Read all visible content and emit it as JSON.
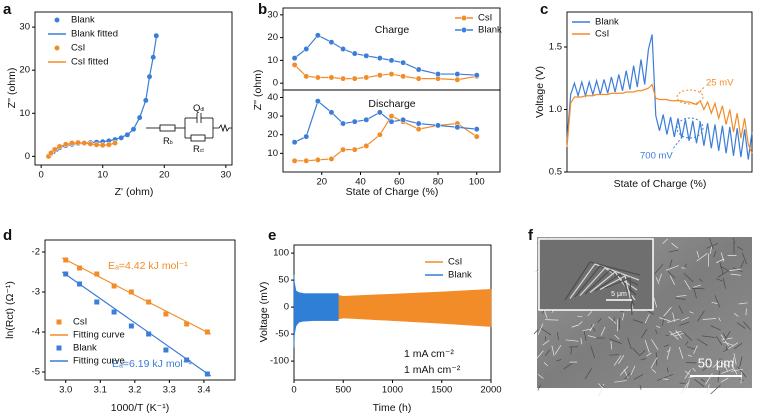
{
  "chart_data": [
    {
      "panel": "a",
      "type": "scatter",
      "xlabel": "Z' (ohm)",
      "ylabel": "Z'' (ohm)",
      "xlim": [
        -1,
        31
      ],
      "ylim": [
        -2,
        33.5
      ],
      "xticks": [
        0,
        10,
        20,
        30
      ],
      "yticks": [
        0,
        10,
        20,
        30
      ],
      "series": [
        {
          "name": "Blank",
          "color": "#3b7dd8",
          "mode": "markers",
          "marker": "circle",
          "x": [
            1.2,
            1.5,
            2,
            2.5,
            3,
            4,
            5,
            6,
            7,
            8,
            9,
            10,
            11,
            12,
            13,
            14,
            15,
            16,
            17,
            17.6,
            18.2,
            18.7
          ],
          "values": [
            0,
            0.5,
            1.1,
            1.6,
            2,
            2.5,
            2.8,
            3,
            3.1,
            3.2,
            3.3,
            3.4,
            3.6,
            3.9,
            4.3,
            5,
            6.3,
            9,
            13,
            18.5,
            23,
            28
          ]
        },
        {
          "name": "Blank fitted",
          "color": "#3b7dd8",
          "mode": "lines",
          "x": [
            1.1,
            2,
            3,
            4,
            6,
            8,
            10,
            12,
            14,
            15,
            16,
            17,
            17.6,
            18.2,
            18.8
          ],
          "values": [
            0,
            1.1,
            2,
            2.5,
            3,
            3.2,
            3.4,
            3.9,
            5,
            6.3,
            9,
            13,
            18.5,
            23,
            28.5
          ]
        },
        {
          "name": "CsI",
          "color": "#f28c28",
          "mode": "markers",
          "marker": "circle",
          "x": [
            1.2,
            1.6,
            2.2,
            3,
            4,
            5,
            6,
            7,
            8,
            9,
            10,
            11,
            12
          ],
          "values": [
            0,
            0.8,
            1.6,
            2.3,
            2.8,
            3.1,
            3.2,
            3.1,
            2.9,
            2.7,
            2.6,
            2.7,
            3.1
          ]
        },
        {
          "name": "CsI fitted",
          "color": "#f28c28",
          "mode": "lines",
          "x": [
            1.1,
            2,
            3,
            5,
            7,
            9,
            10,
            11,
            12
          ],
          "values": [
            0,
            1.4,
            2.3,
            3.1,
            3.1,
            2.7,
            2.6,
            2.7,
            3.1
          ]
        }
      ],
      "inset_labels": [
        {
          "main": "R",
          "sub": "b"
        },
        {
          "main": "Q",
          "sub": "dl"
        },
        {
          "main": "R",
          "sub": "ct"
        }
      ]
    },
    {
      "panel": "b",
      "type": "line",
      "xlabel": "State of Charge (%)",
      "ylabel": "Z'' (ohm)",
      "xlim": [
        0,
        112
      ],
      "xticks": [
        20,
        40,
        60,
        80,
        100
      ],
      "x": [
        6,
        12,
        18,
        25,
        31,
        37,
        43,
        50,
        56,
        62,
        70,
        80,
        90,
        100
      ],
      "series": [
        {
          "name": "CsI",
          "color": "#f28c28",
          "mode": "lines+markers",
          "marker": "circle"
        },
        {
          "name": "Blank",
          "color": "#3b7dd8",
          "mode": "lines+markers",
          "marker": "circle"
        }
      ],
      "subplots": [
        {
          "title": "Charge",
          "ylim": [
            -3,
            33
          ],
          "yticks": [
            0,
            10,
            20,
            30
          ],
          "values": [
            [
              8,
              3,
              2.5,
              2.5,
              2,
              2,
              2.5,
              3.5,
              4,
              3,
              2,
              2,
              1.5,
              3
            ],
            [
              11,
              15,
              21,
              18,
              15,
              13,
              12,
              11,
              10,
              9,
              6,
              4,
              4,
              3.5
            ]
          ]
        },
        {
          "title": "Discharge",
          "ylim": [
            0,
            44
          ],
          "yticks": [
            10,
            20,
            30,
            40
          ],
          "values": [
            [
              6,
              6,
              6.5,
              7,
              12,
              12,
              14,
              20,
              30,
              27,
              23,
              25,
              26,
              19
            ],
            [
              16,
              19,
              38,
              32,
              26,
              27,
              28,
              32,
              27,
              28,
              26,
              25,
              24,
              23
            ]
          ]
        }
      ]
    },
    {
      "panel": "c",
      "type": "line",
      "xlabel": "State of Charge (%)",
      "ylabel": "Voltage (V)",
      "xlim": [
        0,
        100
      ],
      "ylim": [
        0.5,
        1.78
      ],
      "yticks": [
        0.5,
        {
          "value": 1,
          "label": "1.0"
        },
        1.5
      ],
      "x": [
        0,
        2,
        4,
        6,
        8,
        10,
        12,
        14,
        16,
        18,
        20,
        22,
        24,
        26,
        28,
        30,
        32,
        34,
        36,
        38,
        40,
        42,
        44,
        46,
        48,
        50,
        52,
        54,
        56,
        58,
        60,
        62,
        64,
        66,
        68,
        70,
        72,
        74,
        76,
        78,
        80,
        82,
        84,
        86,
        88,
        90,
        92,
        94,
        96,
        98,
        100
      ],
      "series": [
        {
          "name": "Blank",
          "color": "#3b7dd8",
          "mode": "lines",
          "values": [
            0.75,
            1.12,
            1.21,
            1.11,
            1.22,
            1.11,
            1.22,
            1.12,
            1.23,
            1.12,
            1.24,
            1.13,
            1.26,
            1.14,
            1.28,
            1.15,
            1.31,
            1.16,
            1.35,
            1.18,
            1.4,
            1.2,
            1.48,
            1.6,
            0.95,
            0.83,
            0.96,
            0.8,
            0.94,
            0.78,
            0.93,
            0.77,
            0.92,
            0.75,
            0.91,
            0.73,
            0.9,
            0.71,
            0.89,
            0.69,
            0.88,
            0.67,
            0.87,
            0.65,
            0.86,
            0.63,
            0.85,
            0.62,
            0.84,
            0.6,
            0.82
          ]
        },
        {
          "name": "CsI",
          "color": "#f28c28",
          "mode": "lines",
          "values": [
            0.7,
            1.05,
            1.1,
            1.1,
            1.1,
            1.11,
            1.11,
            1.11,
            1.12,
            1.12,
            1.12,
            1.12,
            1.13,
            1.13,
            1.13,
            1.13,
            1.14,
            1.14,
            1.14,
            1.15,
            1.15,
            1.16,
            1.17,
            1.2,
            1.09,
            1.08,
            1.08,
            1.08,
            1.07,
            1.07,
            1.07,
            1.07,
            1.06,
            1.06,
            1.05,
            1.04,
            1.07,
            1.0,
            1.06,
            0.97,
            1.05,
            0.93,
            1.03,
            0.88,
            1.0,
            0.82,
            0.97,
            0.77,
            0.93,
            0.72,
            0.65
          ]
        }
      ],
      "annotations": [
        "25 mV",
        "700 mV"
      ]
    },
    {
      "panel": "d",
      "type": "scatter",
      "xlabel": "1000/T (K⁻¹)",
      "ylabel": "ln(Rct) (Ω⁻¹)",
      "xlim": [
        2.94,
        3.49
      ],
      "ylim": [
        -5.2,
        -1.7
      ],
      "xticks": [
        {
          "value": 3,
          "label": "3.0"
        },
        3.1,
        3.2,
        3.3,
        3.4
      ],
      "yticks": [
        -5,
        -4,
        -3,
        -2
      ],
      "series": [
        {
          "name": "CsI",
          "color": "#f28c28",
          "mode": "markers",
          "marker": "square",
          "x": [
            3.0,
            3.04,
            3.09,
            3.14,
            3.19,
            3.24,
            3.29,
            3.35,
            3.41
          ],
          "values": [
            -2.2,
            -2.4,
            -2.55,
            -2.85,
            -3.0,
            -3.25,
            -3.55,
            -3.8,
            -4.0
          ]
        },
        {
          "name": "Fitting curve",
          "color": "#f28c28",
          "mode": "lines",
          "x": [
            2.99,
            3.42
          ],
          "values": [
            -2.15,
            -4.05
          ]
        },
        {
          "name": "Blank",
          "color": "#3b7dd8",
          "mode": "markers",
          "marker": "square",
          "x": [
            3.0,
            3.04,
            3.09,
            3.14,
            3.19,
            3.24,
            3.29,
            3.35,
            3.41
          ],
          "values": [
            -2.55,
            -2.8,
            -3.25,
            -3.5,
            -3.85,
            -4.05,
            -4.45,
            -4.7,
            -5.05
          ]
        },
        {
          "name": "Fitting curve",
          "color": "#3b7dd8",
          "mode": "lines",
          "x": [
            2.99,
            3.42
          ],
          "values": [
            -2.5,
            -5.1
          ]
        }
      ],
      "annotations": [
        "Eₐ=4.42 kJ mol⁻¹",
        "Eₐ=6.19 kJ mol⁻¹"
      ]
    },
    {
      "panel": "e",
      "type": "area",
      "xlabel": "Time (h)",
      "ylabel": "Voltage (mV)",
      "xlim": [
        0,
        2000
      ],
      "ylim": [
        -135,
        115
      ],
      "xticks": [
        0,
        500,
        1000,
        1500,
        2000
      ],
      "yticks": [
        -100,
        -50,
        0,
        50,
        100
      ],
      "series": [
        {
          "name": "CsI",
          "color": "#f28c28",
          "x": [
            450,
            500,
            1000,
            1500,
            2000
          ],
          "upper": [
            22,
            20,
            24,
            28,
            33
          ],
          "lower": [
            -22,
            -20,
            -25,
            -30,
            -36
          ]
        },
        {
          "name": "Blank",
          "color": "#2f7fd6",
          "x": [
            0,
            5,
            20,
            50,
            100,
            200,
            300,
            400,
            450
          ],
          "upper": [
            60,
            45,
            30,
            27,
            25,
            25,
            25,
            25,
            25
          ],
          "lower": [
            -75,
            -50,
            -35,
            -28,
            -26,
            -25,
            -25,
            -25,
            -25
          ]
        }
      ],
      "annotations": [
        "1 mA cm⁻²",
        "1 mAh cm⁻²"
      ]
    }
  ],
  "image_panel": {
    "panel": "f",
    "scale_bar": "50 μm",
    "inset_scale_bar": "5 μm"
  }
}
